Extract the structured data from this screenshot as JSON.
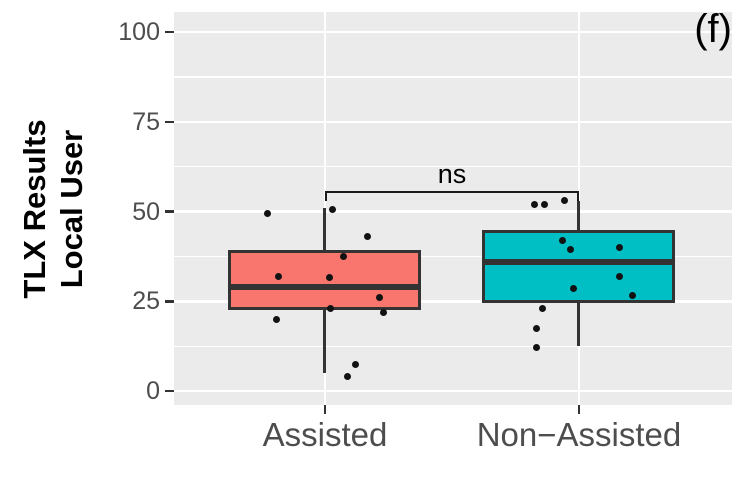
{
  "figure": {
    "panel_label": "(f)"
  },
  "y_axis_title_lines": [
    "TLX Results",
    "Local User"
  ],
  "chart_data": {
    "type": "boxplot",
    "title": "",
    "xlabel": "",
    "ylabel": "TLX Results Local User",
    "categories": [
      "Assisted",
      "Non−Assisted"
    ],
    "y_ticks": [
      0,
      25,
      50,
      75,
      100
    ],
    "y_minor_ticks": [
      12.5,
      37.5,
      62.5,
      87.5
    ],
    "ylim": [
      0,
      100
    ],
    "render_ylim": [
      -3.9,
      105.6
    ],
    "grid": true,
    "legend": "none",
    "annotation": {
      "label": "ns",
      "y": 55.5,
      "from_category": 0,
      "to_category": 1
    },
    "series": [
      {
        "name": "Assisted",
        "fill": "#F8766D",
        "stats": {
          "whisker_low": 5,
          "q1": 23,
          "median": 29,
          "q3": 39,
          "whisker_high": 51
        },
        "points": [
          [
            -57,
            49.5
          ],
          [
            8,
            50.5
          ],
          [
            43,
            43
          ],
          [
            19,
            37.5
          ],
          [
            -46,
            32
          ],
          [
            5,
            31.5
          ],
          [
            55,
            26
          ],
          [
            6,
            23
          ],
          [
            59,
            22
          ],
          [
            -48,
            20
          ],
          [
            31,
            7.5
          ],
          [
            23,
            4
          ]
        ]
      },
      {
        "name": "Non-Assisted",
        "fill": "#00BFC4",
        "stats": {
          "whisker_low": 12.5,
          "q1": 25,
          "median": 36,
          "q3": 44.5,
          "whisker_high": 53
        },
        "points": [
          [
            -44,
            52
          ],
          [
            -34,
            52
          ],
          [
            -14,
            53
          ],
          [
            -16,
            42
          ],
          [
            -8,
            39.5
          ],
          [
            41,
            40
          ],
          [
            41,
            32
          ],
          [
            -5,
            28.5
          ],
          [
            54,
            26.5
          ],
          [
            -36,
            23
          ],
          [
            -42,
            17.5
          ],
          [
            -42,
            12
          ]
        ]
      }
    ],
    "colors": {
      "panel_bg": "#EBEBEB",
      "grid": "#FFFFFF",
      "stroke": "#333333",
      "point": "#121212",
      "tick_text": "#4D4D4D",
      "title_text": "#000000"
    }
  }
}
